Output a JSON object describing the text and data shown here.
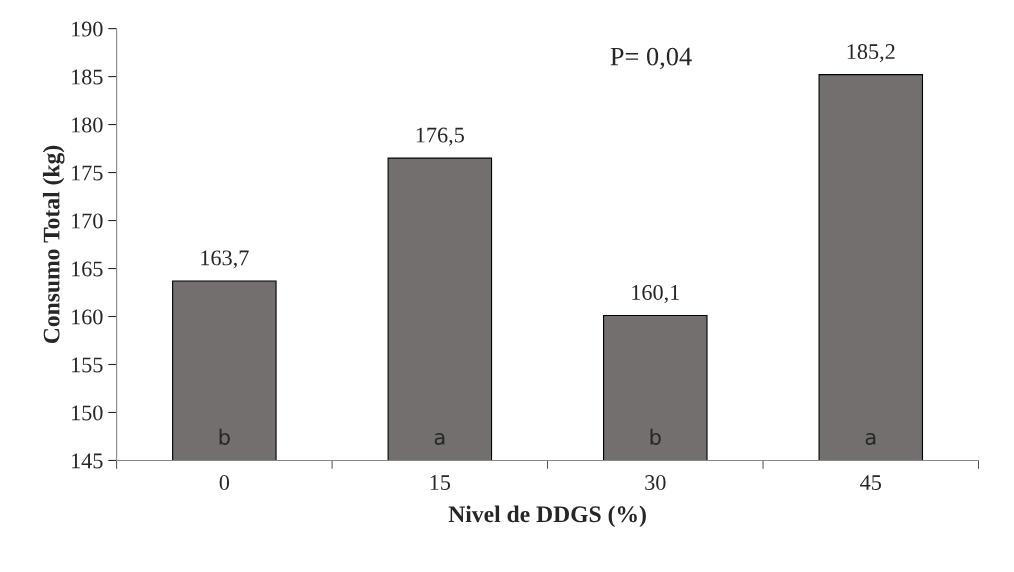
{
  "chart_data": {
    "type": "bar",
    "xlabel": "Nivel de DDGS (%)",
    "ylabel": "Consumo Total (kg)",
    "categories": [
      "0",
      "15",
      "30",
      "45"
    ],
    "values": [
      163.7,
      176.5,
      160.1,
      185.2
    ],
    "value_labels": [
      "163,7",
      "176,5",
      "160,1",
      "185,2"
    ],
    "color": "#736f6e",
    "ylim": [
      145,
      190
    ],
    "yticks": [
      145,
      150,
      155,
      160,
      165,
      170,
      175,
      180,
      185,
      190
    ],
    "grid": false,
    "legend": false,
    "annotations": [
      "b",
      "a",
      "b",
      "a",
      "P= 0,04"
    ]
  }
}
